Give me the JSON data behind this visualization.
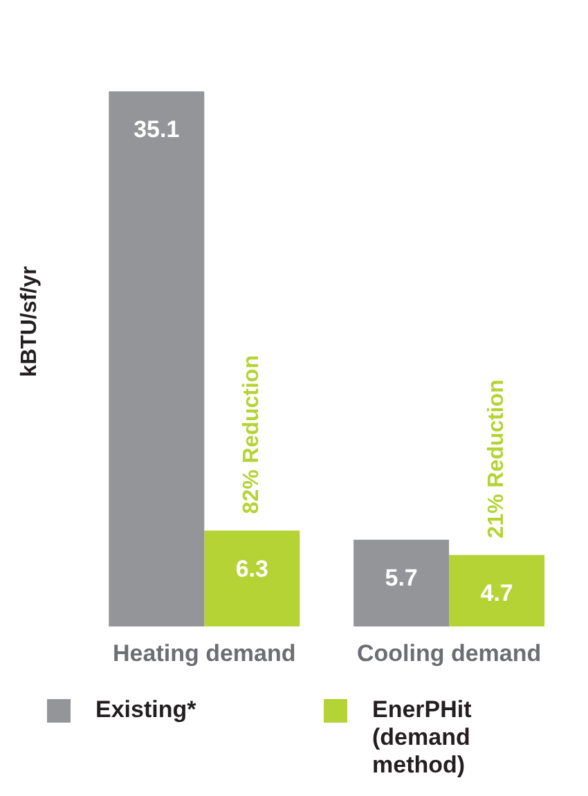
{
  "chart_data": {
    "type": "bar",
    "ylabel": "kBTU/sf/yr",
    "categories": [
      "Heating demand",
      "Cooling demand"
    ],
    "series": [
      {
        "name": "Existing*",
        "color": "#939598",
        "values": [
          35.1,
          5.7
        ]
      },
      {
        "name": "EnerPHit (demand method)",
        "color": "#b5d334",
        "values": [
          6.3,
          4.7
        ]
      }
    ],
    "data_labels": true,
    "grid": false,
    "legend": "bottom",
    "annotations": [
      "82% Reduction",
      "21% Reduction"
    ]
  }
}
